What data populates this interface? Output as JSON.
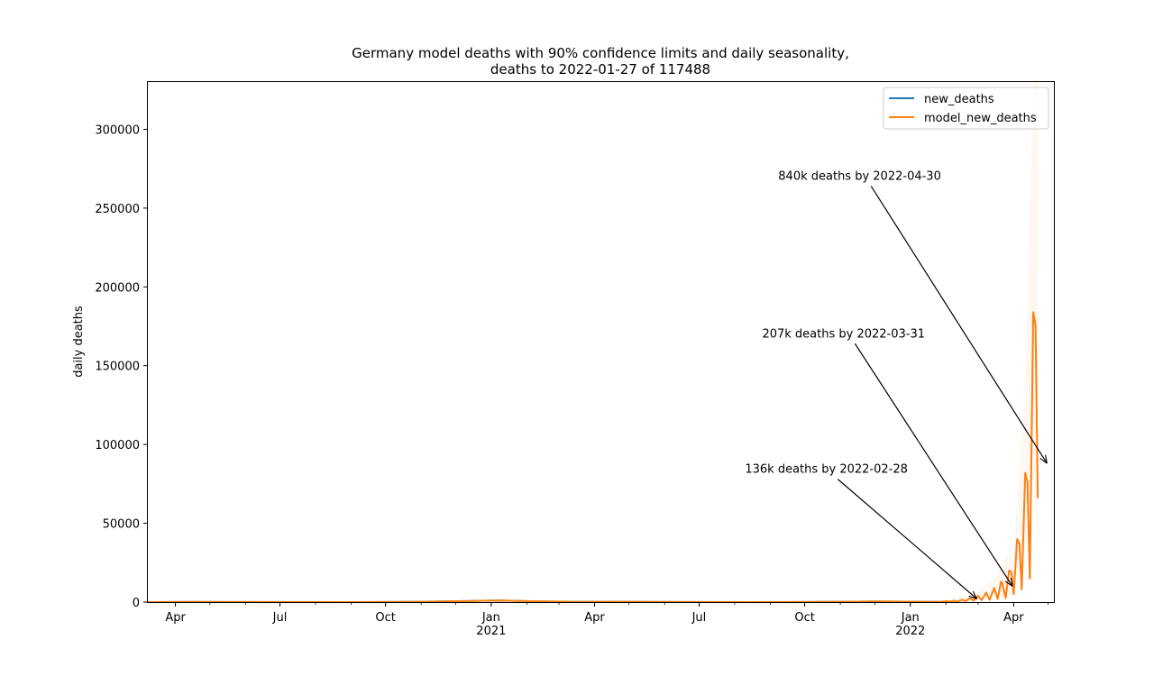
{
  "chart_data": {
    "type": "line",
    "title_line1": "Germany model deaths with 90% confidence limits and daily seasonality,",
    "title_line2": "deaths to 2022-01-27 of 117488",
    "xlabel": "",
    "ylabel": "daily deaths",
    "xlim": [
      "2020-03-08",
      "2022-05-06"
    ],
    "ylim": [
      0,
      330000
    ],
    "y_ticks": [
      0,
      50000,
      100000,
      150000,
      200000,
      250000,
      300000
    ],
    "y_tick_labels": [
      "0",
      "50000",
      "100000",
      "150000",
      "200000",
      "250000",
      "300000"
    ],
    "x_ticks": [
      {
        "date": "2020-04-01",
        "label": "Apr",
        "year": ""
      },
      {
        "date": "2020-07-01",
        "label": "Jul",
        "year": ""
      },
      {
        "date": "2020-10-01",
        "label": "Oct",
        "year": ""
      },
      {
        "date": "2021-01-01",
        "label": "Jan",
        "year": "2021"
      },
      {
        "date": "2021-04-01",
        "label": "Apr",
        "year": ""
      },
      {
        "date": "2021-07-01",
        "label": "Jul",
        "year": ""
      },
      {
        "date": "2021-10-01",
        "label": "Oct",
        "year": ""
      },
      {
        "date": "2022-01-01",
        "label": "Jan",
        "year": "2022"
      },
      {
        "date": "2022-04-01",
        "label": "Apr",
        "year": ""
      }
    ],
    "legend_position": "top-right",
    "series": [
      {
        "name": "new_deaths",
        "color": "#1f77b4",
        "points": [
          [
            "2020-03-08",
            0
          ],
          [
            "2020-04-15",
            200
          ],
          [
            "2020-06-01",
            30
          ],
          [
            "2020-09-01",
            10
          ],
          [
            "2020-10-20",
            120
          ],
          [
            "2020-11-15",
            350
          ],
          [
            "2020-12-10",
            650
          ],
          [
            "2020-12-30",
            900
          ],
          [
            "2021-01-10",
            950
          ],
          [
            "2021-01-25",
            700
          ],
          [
            "2021-02-15",
            400
          ],
          [
            "2021-03-15",
            180
          ],
          [
            "2021-04-20",
            250
          ],
          [
            "2021-05-15",
            120
          ],
          [
            "2021-06-15",
            40
          ],
          [
            "2021-08-15",
            20
          ],
          [
            "2021-10-01",
            80
          ],
          [
            "2021-11-15",
            300
          ],
          [
            "2021-12-05",
            400
          ],
          [
            "2021-12-25",
            300
          ],
          [
            "2022-01-15",
            200
          ],
          [
            "2022-01-27",
            180
          ]
        ]
      },
      {
        "name": "model_new_deaths",
        "color": "#ff7f0e",
        "points": [
          [
            "2020-03-08",
            0
          ],
          [
            "2020-04-15",
            200
          ],
          [
            "2020-06-01",
            30
          ],
          [
            "2020-09-01",
            10
          ],
          [
            "2020-10-20",
            120
          ],
          [
            "2020-11-15",
            350
          ],
          [
            "2020-12-10",
            650
          ],
          [
            "2020-12-30",
            900
          ],
          [
            "2021-01-10",
            950
          ],
          [
            "2021-01-25",
            700
          ],
          [
            "2021-02-15",
            400
          ],
          [
            "2021-03-15",
            180
          ],
          [
            "2021-04-20",
            250
          ],
          [
            "2021-05-15",
            120
          ],
          [
            "2021-06-15",
            40
          ],
          [
            "2021-08-15",
            20
          ],
          [
            "2021-10-01",
            80
          ],
          [
            "2021-11-15",
            300
          ],
          [
            "2021-12-05",
            400
          ],
          [
            "2021-12-25",
            300
          ],
          [
            "2022-01-15",
            200
          ],
          [
            "2022-01-27",
            180
          ],
          [
            "2022-02-01",
            600
          ],
          [
            "2022-02-04",
            300
          ],
          [
            "2022-02-08",
            900
          ],
          [
            "2022-02-11",
            400
          ],
          [
            "2022-02-15",
            1500
          ],
          [
            "2022-02-18",
            600
          ],
          [
            "2022-02-22",
            2500
          ],
          [
            "2022-02-25",
            900
          ],
          [
            "2022-03-01",
            4000
          ],
          [
            "2022-03-04",
            1200
          ],
          [
            "2022-03-08",
            6000
          ],
          [
            "2022-03-11",
            1500
          ],
          [
            "2022-03-15",
            9000
          ],
          [
            "2022-03-18",
            2000
          ],
          [
            "2022-03-21",
            13000
          ],
          [
            "2022-03-22",
            12000
          ],
          [
            "2022-03-25",
            2500
          ],
          [
            "2022-03-28",
            20000
          ],
          [
            "2022-03-30",
            19000
          ],
          [
            "2022-04-01",
            5000
          ],
          [
            "2022-04-04",
            40000
          ],
          [
            "2022-04-06",
            37000
          ],
          [
            "2022-04-08",
            8000
          ],
          [
            "2022-04-11",
            82000
          ],
          [
            "2022-04-13",
            76000
          ],
          [
            "2022-04-15",
            15000
          ],
          [
            "2022-04-18",
            184000
          ],
          [
            "2022-04-20",
            176000
          ],
          [
            "2022-04-22",
            66000
          ]
        ]
      }
    ],
    "confidence_band": {
      "color": "#ff7f0e",
      "points": [
        [
          "2022-02-15",
          3000,
          800
        ],
        [
          "2022-03-01",
          7000,
          1500
        ],
        [
          "2022-03-15",
          15000,
          3000
        ],
        [
          "2022-04-01",
          35000,
          5000
        ],
        [
          "2022-04-11",
          140000,
          40000
        ],
        [
          "2022-04-18",
          330000,
          90000
        ],
        [
          "2022-04-22",
          330000,
          40000
        ]
      ]
    },
    "annotations": [
      {
        "text": "136k deaths by 2022-02-28",
        "arrow_to": [
          "2022-02-28",
          2000
        ],
        "text_at": [
          "2021-08-10",
          82000
        ]
      },
      {
        "text": "207k deaths by 2022-03-31",
        "arrow_to": [
          "2022-03-31",
          10000
        ],
        "text_at": [
          "2021-08-25",
          168000
        ]
      },
      {
        "text": "840k deaths by 2022-04-30",
        "arrow_to": [
          "2022-04-30",
          88000
        ],
        "text_at": [
          "2021-09-08",
          268000
        ]
      }
    ]
  }
}
